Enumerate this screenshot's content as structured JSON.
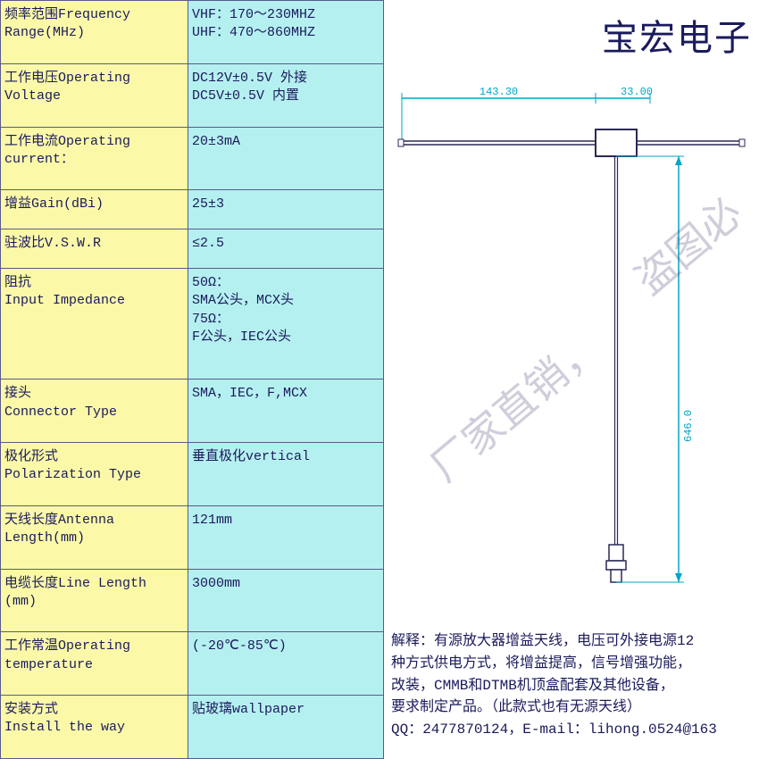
{
  "brand": "宝宏电子",
  "watermark1": "厂家直销，",
  "watermark2": "盗图必",
  "spec_rows": [
    {
      "label": "频率范围Frequency Range(MHz)",
      "value": "VHF：170～230MHZ\nUHF：470～860MHZ"
    },
    {
      "label": "工作电压Operating Voltage",
      "value": "DC12V±0.5V 外接\nDC5V±0.5V  内置"
    },
    {
      "label": "工作电流Operating current：",
      "value": "20±3mA"
    },
    {
      "label": "增益Gain(dBi)",
      "value": "25±3"
    },
    {
      "label": "驻波比V.S.W.R",
      "value": "≤2.5"
    },
    {
      "label": "阻抗\nInput Impedance",
      "value": "50Ω：\nSMA公头，MCX头\n75Ω：\nF公头，IEC公头"
    },
    {
      "label": "接头\nConnector Type",
      "value": "SMA，IEC，F,MCX"
    },
    {
      "label": "极化形式\nPolarization Type",
      "value": "垂直极化vertical"
    },
    {
      "label": "天线长度Antenna Length(mm)",
      "value": "121mm"
    },
    {
      "label": "电缆长度Line Length (mm)",
      "value": "3000mm"
    },
    {
      "label": "工作常温Operating temperature",
      "value": "(-20℃-85℃)"
    },
    {
      "label": "安装方式\nInstall the way",
      "value": "贴玻璃wallpaper"
    }
  ],
  "description_lines": [
    "解释：有源放大器增益天线，电压可外接电源12",
    "种方式供电方式，将增益提高，信号增强功能，",
    "改装，CMMB和DTMB机顶盒配套及其他设备，",
    "要求制定产品。（此款式也有无源天线）",
    "QQ：2477870124，E-mail：lihong.0524@163"
  ],
  "diagram": {
    "dim_color": "#00a6c7",
    "line_color": "#2a2a55",
    "top_dim_left": "143.30",
    "top_dim_right": "33.00",
    "side_dim": "646.0",
    "hub_w": 46,
    "hub_h": 30
  },
  "colors": {
    "bg_left": "#b5f0f0",
    "bg_label": "#fbf9a8",
    "text": "#1a1a5c",
    "border": "#5a5a8a"
  }
}
